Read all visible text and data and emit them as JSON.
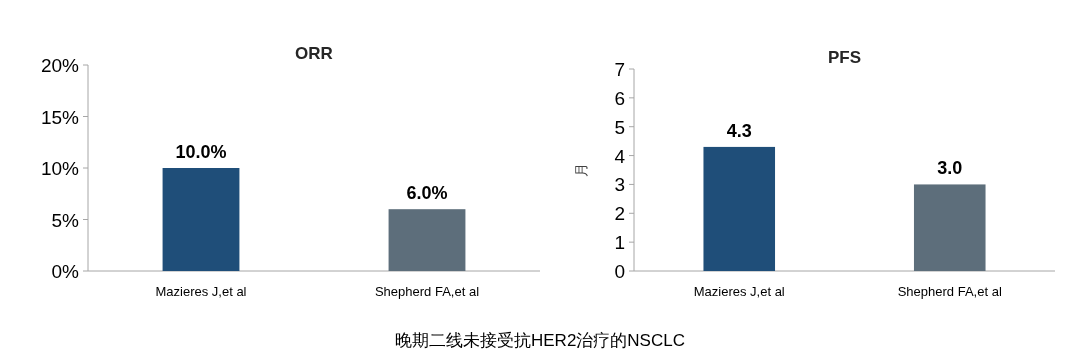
{
  "chart_data": [
    {
      "type": "bar",
      "title": "ORR",
      "categories": [
        "Mazieres J,et al",
        "Shepherd FA,et al"
      ],
      "colors": [
        "#1f4e79",
        "#5d6e7b"
      ],
      "values": [
        10.0,
        6.0
      ],
      "value_labels": [
        "10.0%",
        "6.0%"
      ],
      "ylim": [
        0,
        20
      ],
      "yticks": [
        {
          "value": 0,
          "label": "0%"
        },
        {
          "value": 5,
          "label": "5%"
        },
        {
          "value": 10,
          "label": "10%"
        },
        {
          "value": 15,
          "label": "15%"
        },
        {
          "value": 20,
          "label": "20%"
        }
      ],
      "annotations": [
        "晚期二线未接受抗HER2治疗的NSCLC"
      ]
    },
    {
      "type": "bar",
      "title": "PFS",
      "ylabel": "月",
      "categories": [
        "Mazieres J,et al",
        "Shepherd FA,et al"
      ],
      "colors": [
        "#1f4e79",
        "#5d6e7b"
      ],
      "values": [
        4.3,
        3.0
      ],
      "value_labels": [
        "4.3",
        "3.0"
      ],
      "ylim": [
        0,
        7
      ],
      "yticks": [
        0,
        1,
        2,
        3,
        4,
        5,
        6,
        7
      ]
    }
  ]
}
